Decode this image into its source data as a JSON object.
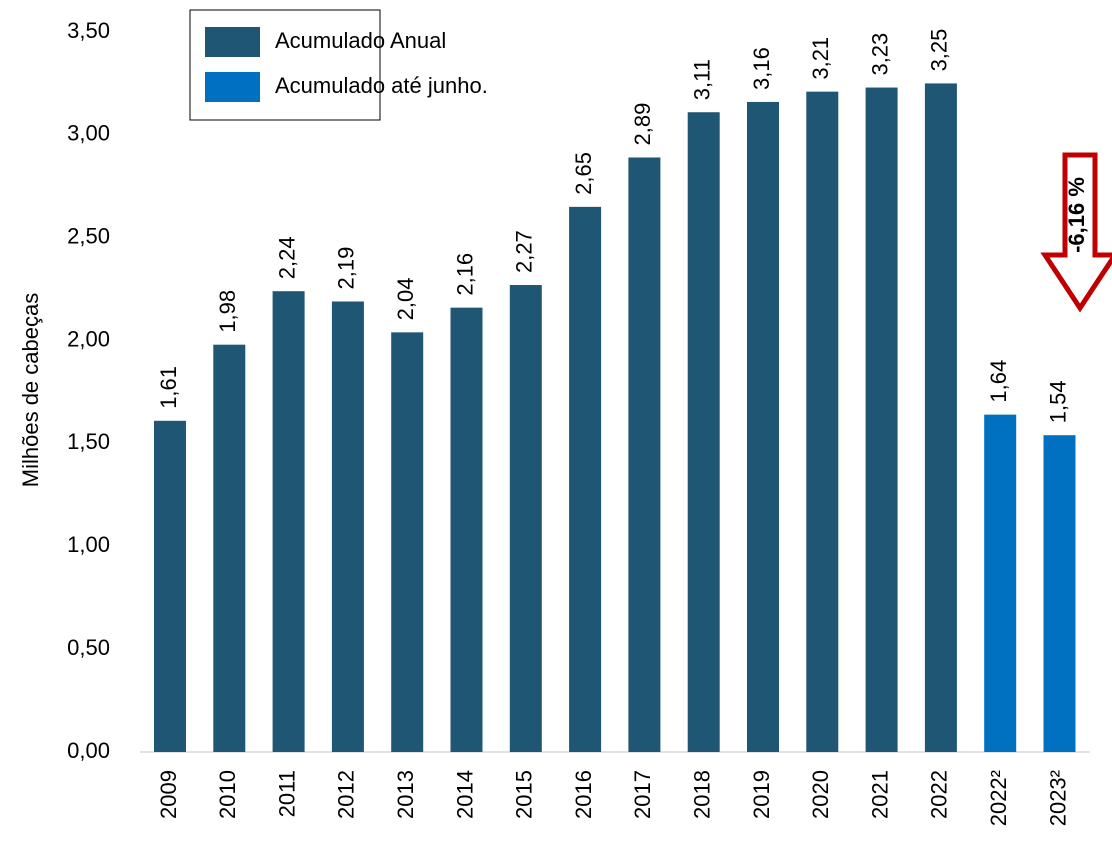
{
  "chart_data": {
    "type": "bar",
    "y_label": "Milhões de cabeças",
    "categories": [
      "2009",
      "2010",
      "2011",
      "2012",
      "2013",
      "2014",
      "2015",
      "2016",
      "2017",
      "2018",
      "2019",
      "2020",
      "2021",
      "2022",
      "2022²",
      "2023²"
    ],
    "series": [
      {
        "name": "Acumulado Anual",
        "color": "#1f5673",
        "values": [
          1.61,
          1.98,
          2.24,
          2.19,
          2.04,
          2.16,
          2.27,
          2.65,
          2.89,
          3.11,
          3.16,
          3.21,
          3.23,
          3.25,
          null,
          null
        ],
        "value_labels": [
          "1,61",
          "1,98",
          "2,24",
          "2,19",
          "2,04",
          "2,16",
          "2,27",
          "2,65",
          "2,89",
          "3,11",
          "3,16",
          "3,21",
          "3,23",
          "3,25",
          null,
          null
        ]
      },
      {
        "name": "Acumulado até junho.",
        "color": "#0070c0",
        "values": [
          null,
          null,
          null,
          null,
          null,
          null,
          null,
          null,
          null,
          null,
          null,
          null,
          null,
          null,
          1.64,
          1.54
        ],
        "value_labels": [
          null,
          null,
          null,
          null,
          null,
          null,
          null,
          null,
          null,
          null,
          null,
          null,
          null,
          null,
          "1,64",
          "1,54"
        ]
      }
    ],
    "ylim": [
      0,
      3.5
    ],
    "yticks": [
      {
        "value": 0,
        "label": "0,00"
      },
      {
        "value": 0.5,
        "label": "0,50"
      },
      {
        "value": 1,
        "label": "1,00"
      },
      {
        "value": 1.5,
        "label": "1,50"
      },
      {
        "value": 2,
        "label": "2,00"
      },
      {
        "value": 2.5,
        "label": "2,50"
      },
      {
        "value": 3,
        "label": "3,00"
      },
      {
        "value": 3.5,
        "label": "3,50"
      }
    ],
    "annotation": "-6,16 %",
    "legend": "top-left"
  }
}
